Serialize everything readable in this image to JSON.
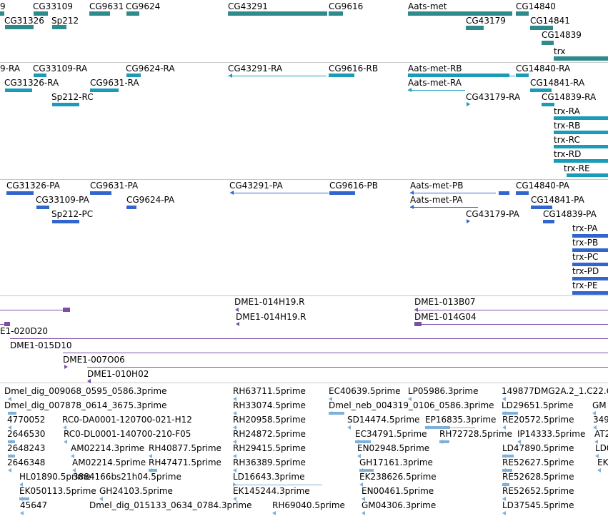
{
  "colors": {
    "genes": "#2e8b8b",
    "rna": "#1a9bb8",
    "protein": "#3366cc",
    "cdna": "#7b4fa8",
    "est": "#7fb0d8",
    "separator": "#c8c8c8"
  },
  "tracks": [
    {
      "name": "genes",
      "color": "genes",
      "labels": [
        "9",
        "CG31326",
        "CG33109",
        "Sp212",
        "CG9631",
        "CG9624",
        "CG43291",
        "CG9616",
        "Aats-met",
        "CG43179",
        "CG14840",
        "CG14841",
        "CG14839",
        "trx"
      ]
    },
    {
      "name": "rna",
      "color": "rna",
      "labels": [
        "9-RA",
        "CG31326-RA",
        "CG33109-RA",
        "Sp212-RC",
        "CG9631-RA",
        "CG9624-RA",
        "CG43291-RA",
        "CG9616-RB",
        "Aats-met-RB",
        "Aats-met-RA",
        "CG43179-RA",
        "CG14840-RA",
        "CG14841-RA",
        "CG14839-RA",
        "trx-RA",
        "trx-RB",
        "trx-RC",
        "trx-RD",
        "trx-RE"
      ]
    },
    {
      "name": "protein",
      "color": "protein",
      "labels": [
        "CG31326-PA",
        "CG33109-PA",
        "Sp212-PC",
        "CG9631-PA",
        "CG9624-PA",
        "CG43291-PA",
        "CG9616-PB",
        "Aats-met-PB",
        "Aats-met-PA",
        "CG43179-PA",
        "CG14840-PA",
        "CG14841-PA",
        "CG14839-PA",
        "trx-PA",
        "trx-PB",
        "trx-PC",
        "trx-PD",
        "trx-PE"
      ]
    },
    {
      "name": "cdna",
      "color": "cdna",
      "labels": [
        "DME1-014H19.R",
        "DME1-014H19.R",
        "DME1-013B07",
        "DME1-014G04",
        "E1-020D20",
        "DME1-015D10",
        "DME1-007O06",
        "DME1-010H02"
      ]
    },
    {
      "name": "est",
      "color": "est",
      "labels": [
        "Dmel_dig_009068_0595_0586.3prime",
        "Dmel_dig_007878_0614_3675.3prime",
        "4770052",
        "RC0-DA0001-120700-021-H12",
        "2646530",
        "RC0-DL0001-140700-210-F05",
        "2648243",
        "AM02214.3prime",
        "RH40877.5prime",
        "2646348",
        "AM02214.5prime",
        "RH47471.5prime",
        "HL01890.5prime",
        "3884166bs21h04.5prime",
        "EK050113.5prime",
        "GH24103.5prime",
        "45647",
        "Dmel_dig_015133_0634_0784.3prime",
        "RH63711.5prime",
        "RH33074.5prime",
        "RH20958.5prime",
        "RH24872.5prime",
        "RH29415.5prime",
        "RH36389.5prime",
        "LD16643.3prime",
        "EK145244.3prime",
        "RH69040.5prime",
        "EC40639.5prime",
        "Dmel_neb_004319_0106_0586.3prime",
        "SD14474.5prime",
        "EC34791.5prime",
        "EN02948.5prime",
        "GH17161.3prime",
        "EK238626.5prime",
        "EN00461.5prime",
        "GM04306.3prime",
        "LP05986.3prime",
        "EP16835.3prime",
        "RH72728.5prime",
        "149877DMG2A.2_1.C22.G",
        "LD29651.5prime",
        "RE20572.5prime",
        "IP14333.5prime",
        "LD47890.5prime",
        "RE52627.5prime",
        "RE52628.5prime",
        "RE52652.5prime",
        "LD37545.5prime",
        "GM",
        "349",
        "AT2",
        "LD0",
        "EK"
      ]
    }
  ]
}
